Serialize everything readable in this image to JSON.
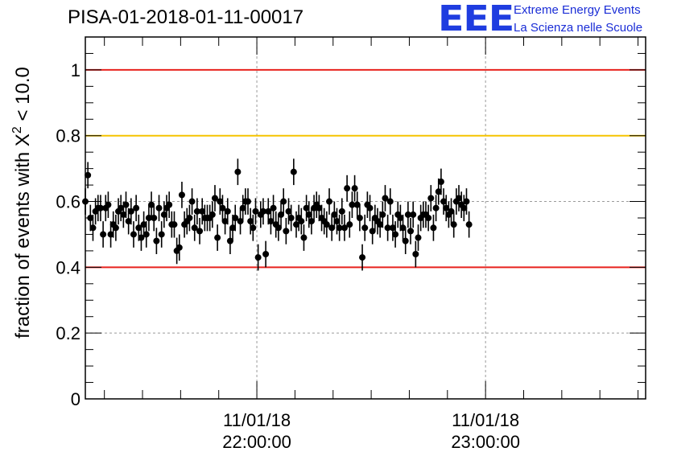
{
  "title": "PISA-01-2018-01-11-00017",
  "logo": {
    "mark": "EEE",
    "line1": "Extreme Energy Events",
    "line2": "La Scienza nelle Scuole"
  },
  "chart_data": {
    "type": "scatter",
    "title": "PISA-01-2018-01-11-00017",
    "ylabel_prefix": "fraction of events with X",
    "ylabel_sup": "2",
    "ylabel_suffix": " < 10.0",
    "ylim": [
      0,
      1.1
    ],
    "xlim": [
      "2018-01-11T21:15:00",
      "2018-01-11T23:42:00"
    ],
    "yticks": [
      0,
      0.2,
      0.4,
      0.6,
      0.8,
      1
    ],
    "ytick_labels": [
      "0",
      "0.2",
      "0.4",
      "0.6",
      "0.8",
      "1"
    ],
    "xticks": [
      {
        "x": "2018-01-11T22:00:00",
        "date": "11/01/18",
        "time": "22:00:00"
      },
      {
        "x": "2018-01-11T23:00:00",
        "date": "11/01/18",
        "time": "23:00:00"
      }
    ],
    "grid": true,
    "reference_lines": [
      {
        "y": 1.0,
        "color": "#e8221e"
      },
      {
        "y": 0.8,
        "color": "#f5c400"
      },
      {
        "y": 0.4,
        "color": "#e8221e"
      }
    ],
    "marker_color": "#000000",
    "y_error": 0.04,
    "x_start": "2018-01-11T21:15:00",
    "x_step_seconds": 40,
    "values": [
      0.6,
      0.68,
      0.55,
      0.52,
      0.57,
      0.58,
      0.58,
      0.5,
      0.58,
      0.59,
      0.5,
      0.53,
      0.52,
      0.57,
      0.58,
      0.56,
      0.59,
      0.54,
      0.57,
      0.5,
      0.58,
      0.52,
      0.49,
      0.53,
      0.5,
      0.55,
      0.59,
      0.55,
      0.48,
      0.58,
      0.5,
      0.56,
      0.58,
      0.59,
      0.53,
      0.53,
      0.45,
      0.46,
      0.62,
      0.53,
      0.54,
      0.55,
      0.6,
      0.52,
      0.57,
      0.51,
      0.57,
      0.55,
      0.55,
      0.55,
      0.56,
      0.61,
      0.49,
      0.6,
      0.58,
      0.54,
      0.57,
      0.48,
      0.52,
      0.55,
      0.69,
      0.54,
      0.58,
      0.6,
      0.6,
      0.54,
      0.52,
      0.57,
      0.43,
      0.56,
      0.57,
      0.44,
      0.57,
      0.54,
      0.58,
      0.53,
      0.52,
      0.56,
      0.6,
      0.51,
      0.57,
      0.55,
      0.69,
      0.53,
      0.55,
      0.54,
      0.49,
      0.58,
      0.56,
      0.54,
      0.58,
      0.59,
      0.58,
      0.55,
      0.54,
      0.53,
      0.6,
      0.52,
      0.56,
      0.54,
      0.52,
      0.57,
      0.52,
      0.64,
      0.53,
      0.59,
      0.64,
      0.59,
      0.55,
      0.43,
      0.52,
      0.59,
      0.58,
      0.51,
      0.55,
      0.54,
      0.53,
      0.56,
      0.61,
      0.52,
      0.6,
      0.52,
      0.5,
      0.56,
      0.55,
      0.52,
      0.48,
      0.56,
      0.51,
      0.56,
      0.44,
      0.49,
      0.55,
      0.56,
      0.56,
      0.55,
      0.61,
      0.52,
      0.58,
      0.63,
      0.66,
      0.6,
      0.58,
      0.56,
      0.57,
      0.53,
      0.6,
      0.61,
      0.59,
      0.58,
      0.6,
      0.53
    ]
  }
}
